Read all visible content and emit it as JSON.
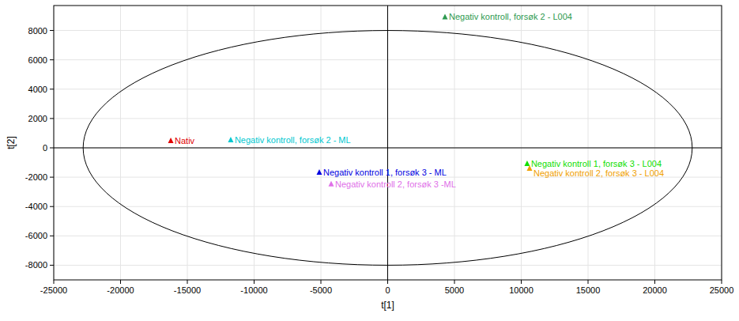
{
  "chart_data": {
    "type": "scatter",
    "x_label": "t[1]",
    "y_label": "t[2]",
    "xlim": [
      -25000,
      25000
    ],
    "ylim": [
      -9000,
      9700
    ],
    "xticks": [
      -25000,
      -20000,
      -15000,
      -10000,
      -5000,
      0,
      5000,
      10000,
      15000,
      20000,
      25000
    ],
    "yticks": [
      -8000,
      -6000,
      -4000,
      -2000,
      0,
      2000,
      4000,
      6000,
      8000
    ],
    "grid": true,
    "marker": "triangle",
    "ellipse": {
      "rx": 22800,
      "ry": 8000
    },
    "series": [
      {
        "name": "Nativ",
        "color": "#e00000",
        "x": [
          -16240
        ],
        "values": [
          480
        ]
      },
      {
        "name": "Negativ kontroll, forsøk 2 - ML",
        "color": "#00c8d0",
        "x": [
          -11750
        ],
        "values": [
          540
        ]
      },
      {
        "name": "Negativ kontroll, forsøk 2 - L004",
        "color": "#2e9a50",
        "x": [
          4290
        ],
        "values": [
          8920
        ]
      },
      {
        "name": "Negativ kontroll 1, forsøk 3 - ML",
        "color": "#0000e0",
        "x": [
          -5120
        ],
        "values": [
          -1670
        ]
      },
      {
        "name": "Negativ kontroll 2, forsøk 3 -ML",
        "color": "#e070e8",
        "x": [
          -4230
        ],
        "values": [
          -2470
        ]
      },
      {
        "name": "Negativ kontroll 1, forsøk 3 - L004",
        "color": "#10e000",
        "x": [
          10440
        ],
        "values": [
          -1075
        ]
      },
      {
        "name": "Negativ kontroll 2, forsøk 3 - L004",
        "color": "#f0a000",
        "x": [
          10620
        ],
        "values": [
          -1400
        ]
      }
    ]
  }
}
